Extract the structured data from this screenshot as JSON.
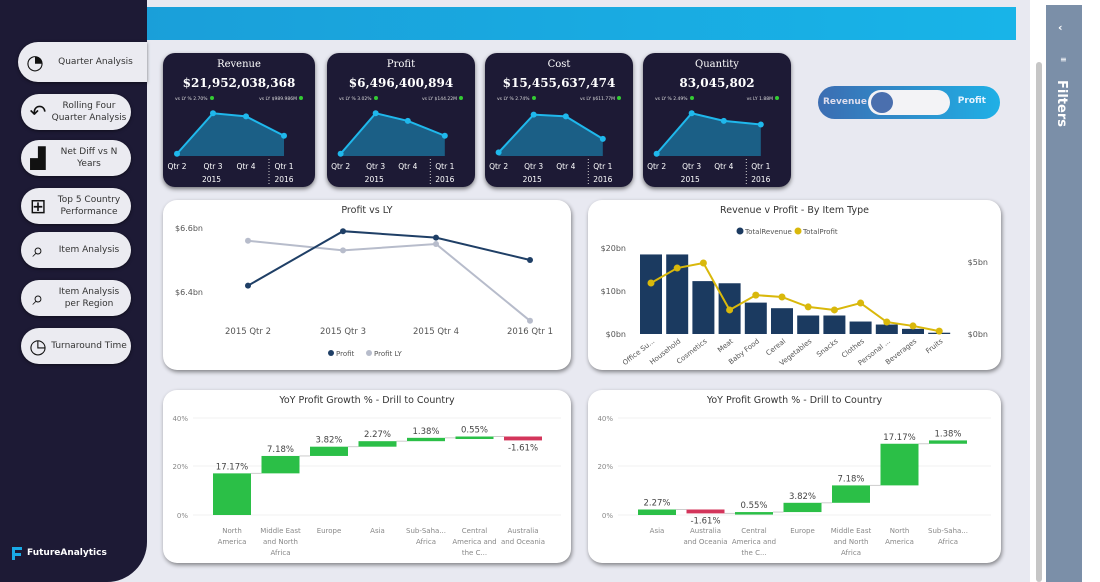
{
  "sidebar": {
    "items": [
      {
        "label": "Quarter Analysis",
        "icon": "pie-chart-icon",
        "active": true
      },
      {
        "label": "Rolling Four Quarter Analysis",
        "icon": "undo-arrow-icon"
      },
      {
        "label": "Net Diff vs N Years",
        "icon": "bar-growth-icon"
      },
      {
        "label": "Top 5 Country Performance",
        "icon": "podium-icon"
      },
      {
        "label": "Item Analysis",
        "icon": "magnifier-chart-icon"
      },
      {
        "label": "Item Analysis per Region",
        "icon": "magnifier-chart-icon"
      },
      {
        "label": "Turnaround Time",
        "icon": "clock-icon"
      }
    ],
    "logo": "FutureAnalytics"
  },
  "kpis": [
    {
      "title": "Revenue",
      "value": "$21,952,038,368",
      "vs_pct": "vs LY % 2.70%",
      "vs_abs": "vs LY $989.986M",
      "trend": [
        0.05,
        0.95,
        0.88,
        0.45
      ]
    },
    {
      "title": "Profit",
      "value": "$6,496,400,894",
      "vs_pct": "vs LY % 3.02%",
      "vs_abs": "vs LY $144.22M",
      "trend": [
        0.05,
        0.95,
        0.78,
        0.45
      ]
    },
    {
      "title": "Cost",
      "value": "$15,455,637,474",
      "vs_pct": "vs LY % 2.74%",
      "vs_abs": "vs LY $611.77M",
      "trend": [
        0.08,
        0.92,
        0.88,
        0.38
      ]
    },
    {
      "title": "Quantity",
      "value": "83,045,802",
      "vs_pct": "vs LY % 2.49%",
      "vs_abs": "vs LY 1.88M",
      "trend": [
        0.05,
        0.95,
        0.78,
        0.7
      ]
    }
  ],
  "kpi_axis": {
    "quarters": [
      "Qtr 2",
      "Qtr 3",
      "Qtr 4",
      "Qtr 1"
    ],
    "years": [
      "2015",
      "2016"
    ]
  },
  "toggle": {
    "left": "Revenue",
    "right": "Profit",
    "state": "Revenue"
  },
  "filters": {
    "label": "Filters"
  },
  "chart_data": [
    {
      "type": "line",
      "title": "Profit vs LY",
      "categories": [
        "2015 Qtr 2",
        "2015 Qtr 3",
        "2015 Qtr 4",
        "2016 Qtr 1"
      ],
      "yticks": [
        "$6.4bn",
        "$6.6bn"
      ],
      "ylim": [
        6.3,
        6.65
      ],
      "series": [
        {
          "name": "Profit",
          "values": [
            6.42,
            6.59,
            6.57,
            6.5
          ],
          "color": "#1f3f66"
        },
        {
          "name": "Profit LY",
          "values": [
            6.56,
            6.53,
            6.55,
            6.31
          ],
          "color": "#b7bccb"
        }
      ],
      "legend": "bottom"
    },
    {
      "type": "bar",
      "title": "Revenue v Profit - By Item Type",
      "categories": [
        "Office Su...",
        "Household",
        "Cosmetics",
        "Meat",
        "Baby Food",
        "Cereal",
        "Vegetables",
        "Snacks",
        "Clothes",
        "Personal ...",
        "Beverages",
        "Fruits"
      ],
      "series": [
        {
          "name": "TotalRevenue",
          "values": [
            18.5,
            18.5,
            12.3,
            11.8,
            7.3,
            6.0,
            4.3,
            4.3,
            2.9,
            2.2,
            1.2,
            0.3
          ],
          "color": "#1b3a60",
          "axis": "left"
        },
        {
          "name": "TotalProfit",
          "values": [
            3.54,
            4.58,
            4.93,
            1.67,
            2.7,
            2.57,
            1.88,
            1.67,
            2.15,
            0.83,
            0.56,
            0.2
          ],
          "color": "#d9b80b",
          "axis": "right"
        }
      ],
      "yticks_left": [
        "$0bn",
        "$10bn",
        "$20bn"
      ],
      "yticks_right": [
        "$0bn",
        "$5bn"
      ],
      "legend": "top"
    },
    {
      "type": "waterfall",
      "title": "YoY Profit Growth % - Drill to Country",
      "categories": [
        "North America",
        "Middle East and North Africa",
        "Europe",
        "Asia",
        "Sub-Saha... Africa",
        "Central America and the C...",
        "Australia and Oceania"
      ],
      "values": [
        17.17,
        7.18,
        3.82,
        2.27,
        1.38,
        0.55,
        -1.61
      ],
      "labels": [
        "17.17%",
        "7.18%",
        "3.82%",
        "2.27%",
        "1.38%",
        "0.55%",
        "-1.61%"
      ],
      "yticks": [
        "0%",
        "20%",
        "40%"
      ],
      "ylim": [
        0,
        40
      ],
      "colors": {
        "up": "#2bbf47",
        "down": "#d3355b"
      }
    },
    {
      "type": "waterfall",
      "title": "YoY Profit Growth % - Drill to Country",
      "categories": [
        "Asia",
        "Australia and Oceania",
        "Central America and the C...",
        "Europe",
        "Middle East and North Africa",
        "North America",
        "Sub-Saha... Africa"
      ],
      "values": [
        2.27,
        -1.61,
        0.55,
        3.82,
        7.18,
        17.17,
        1.38
      ],
      "labels": [
        "2.27%",
        "-1.61%",
        "0.55%",
        "3.82%",
        "7.18%",
        "17.17%",
        "1.38%"
      ],
      "yticks": [
        "0%",
        "20%",
        "40%"
      ],
      "ylim": [
        0,
        40
      ],
      "colors": {
        "up": "#2bbf47",
        "down": "#d3355b"
      }
    }
  ]
}
